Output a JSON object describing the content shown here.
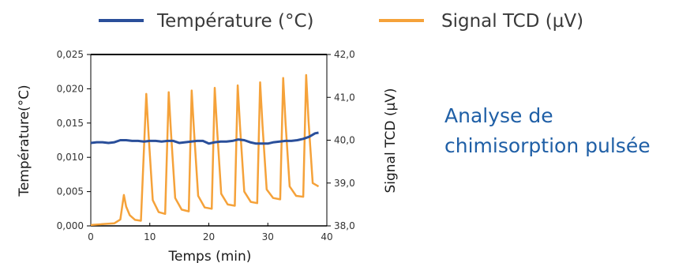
{
  "chart_data": {
    "type": "line",
    "title": "",
    "xlabel": "Temps (min)",
    "ylabel_left": "Température(°C)",
    "ylabel_right": "Signal TCD (µV)",
    "xlim": [
      0,
      40
    ],
    "ylim_left": [
      0,
      0.025
    ],
    "ylim_right": [
      38.0,
      42.0
    ],
    "x_ticks": [
      "0",
      "10",
      "20",
      "30",
      "40"
    ],
    "x_tick_values": [
      0,
      10,
      20,
      30,
      40
    ],
    "y_left_ticks": [
      "0,000",
      "0,005",
      "0,010",
      "0,015",
      "0,020",
      "0,025"
    ],
    "y_left_tick_values": [
      0,
      0.005,
      0.01,
      0.015,
      0.02,
      0.025
    ],
    "y_right_ticks": [
      "38,0",
      "39,0",
      "40,0",
      "41,0",
      "42,0"
    ],
    "y_right_tick_values": [
      38,
      39,
      40,
      41,
      42
    ],
    "legend_position": "top",
    "grid": false,
    "series": [
      {
        "name": "Température (°C)",
        "axis": "left",
        "color": "#2a4f9a",
        "x": [
          0,
          1,
          2,
          3,
          4,
          5,
          6,
          7,
          8,
          9,
          10,
          11,
          12,
          13,
          14,
          15,
          16,
          17,
          18,
          19,
          20,
          21,
          22,
          23,
          24,
          25,
          26,
          27,
          28,
          29,
          30,
          31,
          32,
          33,
          34,
          35,
          36,
          37,
          38,
          38.6
        ],
        "values": [
          0.0121,
          0.0122,
          0.0122,
          0.0121,
          0.0122,
          0.0125,
          0.0125,
          0.0124,
          0.0124,
          0.0123,
          0.0124,
          0.0124,
          0.0123,
          0.0124,
          0.0124,
          0.0121,
          0.0122,
          0.0123,
          0.0124,
          0.0124,
          0.012,
          0.0122,
          0.0123,
          0.0123,
          0.0124,
          0.0126,
          0.0125,
          0.0122,
          0.012,
          0.012,
          0.012,
          0.0122,
          0.0123,
          0.0124,
          0.0124,
          0.0125,
          0.0127,
          0.013,
          0.0135,
          0.0136
        ]
      },
      {
        "name": "Signal TCD (µV)",
        "axis": "right",
        "color": "#f5a23a",
        "x": [
          0,
          1,
          2,
          3,
          4,
          5,
          5.6,
          6.0,
          6.6,
          7.5,
          8.5,
          9.4,
          9.8,
          10.5,
          11.5,
          12.6,
          13.2,
          13.6,
          14.3,
          15.4,
          16.6,
          17.1,
          17.5,
          18.2,
          19.3,
          20.5,
          21.0,
          21.4,
          22.1,
          23.2,
          24.4,
          24.9,
          25.3,
          26.0,
          27.1,
          28.2,
          28.7,
          29.1,
          29.8,
          30.9,
          32.1,
          32.6,
          33.0,
          33.7,
          34.8,
          36.0,
          36.5,
          36.9,
          37.6,
          38.6
        ],
        "values": [
          38.02,
          38.03,
          38.04,
          38.05,
          38.06,
          38.15,
          38.72,
          38.45,
          38.25,
          38.14,
          38.12,
          41.08,
          40.1,
          38.6,
          38.32,
          38.28,
          41.12,
          40.15,
          38.65,
          38.38,
          38.34,
          41.16,
          40.2,
          38.7,
          38.43,
          38.4,
          41.22,
          40.25,
          38.75,
          38.5,
          38.47,
          41.28,
          40.3,
          38.8,
          38.56,
          38.53,
          41.35,
          40.35,
          38.85,
          38.65,
          38.62,
          41.45,
          40.4,
          38.92,
          38.7,
          38.68,
          41.52,
          40.45,
          39.0,
          38.92
        ]
      }
    ]
  },
  "caption": {
    "line1": "Analyse de",
    "line2": "chimisorption pulsée"
  }
}
